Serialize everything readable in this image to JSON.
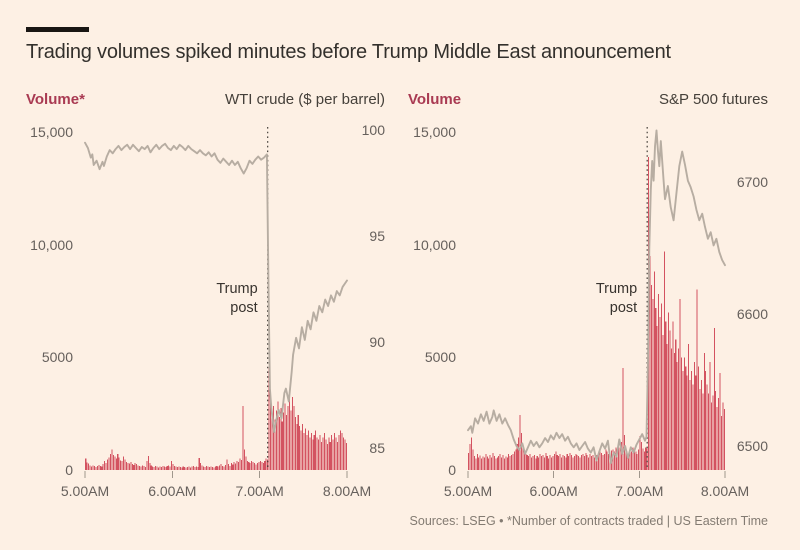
{
  "page": {
    "title": "Trading volumes spiked minutes before Trump Middle East announcement",
    "source_note": "Sources: LSEG • *Number of contracts traded | US Eastern Time"
  },
  "colors": {
    "background": "#fdf0e4",
    "bar_red": "#d35260",
    "volume_label_red": "#a93a52",
    "price_line_gray": "#b7ada2",
    "event_line": "#45403a",
    "axis_text": "#66605c",
    "title_text": "#33302c",
    "header_rule": "#191613"
  },
  "chart_data": [
    {
      "id": "wti-crude",
      "type": "bar+line",
      "volume_label": "Volume*",
      "price_label": "WTI crude ($ per barrel)",
      "x_ticks": [
        "5.00AM",
        "6.00AM",
        "7.00AM",
        "8.00AM"
      ],
      "x_range_minutes": 180,
      "event_minute": 125,
      "annotation": {
        "lines": [
          "Trump",
          "post"
        ]
      },
      "volume_axis": {
        "max": 15000,
        "tick_values": [
          15000,
          10000,
          5000,
          0
        ],
        "tick_labels": [
          "15,000",
          "10,000",
          "5000",
          "0"
        ]
      },
      "price_axis": {
        "tick_values": [
          100,
          95,
          90,
          85
        ],
        "tick_labels": [
          "100",
          "95",
          "90",
          "85"
        ]
      },
      "volume_minutes": [
        520,
        340,
        280,
        190,
        160,
        210,
        170,
        140,
        180,
        230,
        170,
        150,
        260,
        390,
        310,
        460,
        560,
        720,
        910,
        660,
        610,
        510,
        710,
        560,
        430,
        390,
        610,
        460,
        350,
        300,
        280,
        350,
        260,
        220,
        300,
        260,
        200,
        180,
        150,
        200,
        170,
        140,
        410,
        620,
        300,
        200,
        160,
        130,
        180,
        150,
        120,
        160,
        140,
        180,
        150,
        130,
        170,
        200,
        150,
        410,
        260,
        180,
        150,
        130,
        160,
        140,
        120,
        150,
        130,
        110,
        140,
        160,
        120,
        150,
        180,
        140,
        160,
        130,
        530,
        310,
        200,
        160,
        140,
        170,
        150,
        130,
        160,
        140,
        120,
        150,
        180,
        150,
        200,
        260,
        180,
        160,
        230,
        460,
        260,
        180,
        300,
        250,
        350,
        280,
        400,
        350,
        500,
        450,
        2830,
        920,
        610,
        410,
        350,
        300,
        400,
        350,
        300,
        250,
        300,
        350,
        410,
        350,
        300,
        410,
        510,
        460,
        4560,
        3250,
        2450,
        2850,
        2250,
        2650,
        3050,
        2350,
        2750,
        2150,
        2550,
        2950,
        2450,
        2850,
        3350,
        2650,
        3250,
        2850,
        2350,
        2050,
        2450,
        1950,
        1750,
        2050,
        1650,
        1850,
        1550,
        1750,
        1450,
        1650,
        1350,
        1550,
        1750,
        1450,
        1350,
        1550,
        1250,
        1450,
        1650,
        1350,
        1150,
        1450,
        1250,
        1550,
        1350,
        1650,
        1450,
        1250,
        1550,
        1750,
        1650,
        1450,
        1350,
        1200
      ],
      "price_points": [
        [
          0,
          99.4
        ],
        [
          2,
          99.15
        ],
        [
          4,
          98.7
        ],
        [
          5,
          98.85
        ],
        [
          6,
          98.35
        ],
        [
          8,
          98.55
        ],
        [
          10,
          98.15
        ],
        [
          12,
          98.5
        ],
        [
          13,
          98.3
        ],
        [
          15,
          98.75
        ],
        [
          17,
          99.05
        ],
        [
          19,
          98.9
        ],
        [
          21,
          99.1
        ],
        [
          23,
          99.25
        ],
        [
          25,
          99.05
        ],
        [
          27,
          99.2
        ],
        [
          29,
          99.3
        ],
        [
          31,
          99.1
        ],
        [
          33,
          99.3
        ],
        [
          35,
          99.15
        ],
        [
          37,
          99.0
        ],
        [
          39,
          99.2
        ],
        [
          41,
          99.1
        ],
        [
          43,
          99.25
        ],
        [
          45,
          98.95
        ],
        [
          47,
          99.15
        ],
        [
          49,
          99.3
        ],
        [
          51,
          99.1
        ],
        [
          53,
          99.25
        ],
        [
          55,
          99.35
        ],
        [
          57,
          99.15
        ],
        [
          59,
          99.05
        ],
        [
          61,
          99.25
        ],
        [
          63,
          99.1
        ],
        [
          65,
          99.3
        ],
        [
          67,
          99.2
        ],
        [
          69,
          99.05
        ],
        [
          71,
          99.25
        ],
        [
          73,
          99.1
        ],
        [
          75,
          99.0
        ],
        [
          77,
          98.9
        ],
        [
          79,
          99.05
        ],
        [
          81,
          98.9
        ],
        [
          83,
          98.8
        ],
        [
          85,
          98.95
        ],
        [
          87,
          98.75
        ],
        [
          89,
          98.9
        ],
        [
          91,
          98.6
        ],
        [
          93,
          98.45
        ],
        [
          95,
          98.65
        ],
        [
          97,
          98.5
        ],
        [
          99,
          98.35
        ],
        [
          101,
          98.55
        ],
        [
          103,
          98.35
        ],
        [
          105,
          98.5
        ],
        [
          107,
          98.2
        ],
        [
          109,
          97.95
        ],
        [
          111,
          98.2
        ],
        [
          113,
          98.55
        ],
        [
          115,
          98.4
        ],
        [
          117,
          98.6
        ],
        [
          119,
          98.75
        ],
        [
          121,
          98.6
        ],
        [
          123,
          98.7
        ],
        [
          125,
          98.85
        ],
        [
          126,
          93.0
        ],
        [
          127,
          87.8
        ],
        [
          128,
          86.9
        ],
        [
          129,
          86.3
        ],
        [
          130,
          85.75
        ],
        [
          131,
          86.2
        ],
        [
          133,
          86.8
        ],
        [
          135,
          86.4
        ],
        [
          137,
          87.6
        ],
        [
          138,
          87.8
        ],
        [
          140,
          87.2
        ],
        [
          142,
          88.6
        ],
        [
          143,
          89.4
        ],
        [
          145,
          90.2
        ],
        [
          147,
          89.7
        ],
        [
          149,
          90.7
        ],
        [
          151,
          90.1
        ],
        [
          153,
          91.0
        ],
        [
          155,
          90.6
        ],
        [
          157,
          91.4
        ],
        [
          159,
          91.0
        ],
        [
          161,
          91.7
        ],
        [
          163,
          91.4
        ],
        [
          165,
          92.0
        ],
        [
          167,
          91.7
        ],
        [
          169,
          92.2
        ],
        [
          171,
          91.9
        ],
        [
          173,
          92.4
        ],
        [
          175,
          92.2
        ],
        [
          177,
          92.6
        ],
        [
          180,
          92.9
        ]
      ]
    },
    {
      "id": "sp500-futures",
      "type": "bar+line",
      "volume_label": "Volume",
      "price_label": "S&P 500 futures",
      "x_ticks": [
        "5.00AM",
        "6.00AM",
        "7.00AM",
        "8.00AM"
      ],
      "x_range_minutes": 180,
      "event_minute": 125,
      "annotation": {
        "lines": [
          "Trump",
          "post"
        ]
      },
      "volume_axis": {
        "max": 15000,
        "tick_values": [
          15000,
          10000,
          5000,
          0
        ],
        "tick_labels": [
          "15,000",
          "10,000",
          "5000",
          "0"
        ]
      },
      "price_axis": {
        "tick_values": [
          6700,
          6600,
          6500
        ],
        "tick_labels": [
          "6700",
          "6600",
          "6500"
        ]
      },
      "volume_minutes": [
        750,
        1150,
        1450,
        900,
        620,
        520,
        700,
        560,
        640,
        500,
        600,
        560,
        700,
        600,
        520,
        660,
        560,
        760,
        620,
        520,
        560,
        620,
        700,
        560,
        660,
        520,
        600,
        560,
        700,
        620,
        660,
        720,
        820,
        920,
        1150,
        1450,
        2430,
        1650,
        1000,
        820,
        700,
        660,
        620,
        700,
        560,
        620,
        660,
        520,
        620,
        560,
        700,
        620,
        660,
        560,
        760,
        620,
        520,
        660,
        560,
        620,
        700,
        820,
        660,
        620,
        700,
        560,
        660,
        620,
        560,
        700,
        620,
        760,
        660,
        560,
        620,
        700,
        660,
        620,
        560,
        660,
        700,
        620,
        760,
        660,
        560,
        700,
        620,
        660,
        560,
        620,
        660,
        700,
        820,
        760,
        660,
        700,
        920,
        820,
        700,
        760,
        860,
        920,
        820,
        1000,
        920,
        1150,
        1000,
        1250,
        4520,
        1550,
        950,
        820,
        720,
        920,
        820,
        1000,
        920,
        820,
        720,
        920,
        1500,
        1250,
        950,
        820,
        1000,
        950,
        13900,
        9500,
        8200,
        7600,
        8800,
        7200,
        6400,
        7800,
        6800,
        7400,
        6000,
        9700,
        6600,
        5600,
        7000,
        6200,
        5400,
        6600,
        5200,
        5800,
        4800,
        5400,
        7600,
        5000,
        4400,
        5000,
        4600,
        4200,
        5600,
        4000,
        4400,
        3800,
        4800,
        4200,
        8000,
        4600,
        3600,
        4000,
        3400,
        5200,
        4400,
        3800,
        3400,
        4800,
        3000,
        3300,
        6300,
        3500,
        2800,
        3200,
        4300,
        2400,
        3000,
        2700
      ],
      "price_points": [
        [
          0,
          6512
        ],
        [
          2,
          6515
        ],
        [
          3,
          6510
        ],
        [
          5,
          6521
        ],
        [
          7,
          6517
        ],
        [
          9,
          6524
        ],
        [
          11,
          6519
        ],
        [
          13,
          6526
        ],
        [
          15,
          6517
        ],
        [
          17,
          6522
        ],
        [
          18,
          6527
        ],
        [
          20,
          6519
        ],
        [
          22,
          6524
        ],
        [
          24,
          6517
        ],
        [
          26,
          6521
        ],
        [
          28,
          6516
        ],
        [
          30,
          6512
        ],
        [
          32,
          6505
        ],
        [
          34,
          6500
        ],
        [
          36,
          6497
        ],
        [
          38,
          6502
        ],
        [
          40,
          6494
        ],
        [
          42,
          6499
        ],
        [
          44,
          6504
        ],
        [
          46,
          6500
        ],
        [
          48,
          6503
        ],
        [
          50,
          6499
        ],
        [
          52,
          6502
        ],
        [
          54,
          6506
        ],
        [
          56,
          6503
        ],
        [
          58,
          6508
        ],
        [
          60,
          6505
        ],
        [
          62,
          6510
        ],
        [
          64,
          6506
        ],
        [
          66,
          6509
        ],
        [
          68,
          6504
        ],
        [
          70,
          6507
        ],
        [
          72,
          6502
        ],
        [
          74,
          6499
        ],
        [
          76,
          6502
        ],
        [
          78,
          6497
        ],
        [
          80,
          6500
        ],
        [
          82,
          6503
        ],
        [
          84,
          6498
        ],
        [
          86,
          6495
        ],
        [
          88,
          6499
        ],
        [
          90,
          6489
        ],
        [
          92,
          6496
        ],
        [
          94,
          6502
        ],
        [
          96,
          6498
        ],
        [
          98,
          6504
        ],
        [
          100,
          6487
        ],
        [
          102,
          6495
        ],
        [
          104,
          6492
        ],
        [
          106,
          6505
        ],
        [
          108,
          6494
        ],
        [
          110,
          6500
        ],
        [
          112,
          6491
        ],
        [
          114,
          6499
        ],
        [
          116,
          6495
        ],
        [
          118,
          6501
        ],
        [
          120,
          6505
        ],
        [
          122,
          6509
        ],
        [
          124,
          6504
        ],
        [
          125,
          6507
        ],
        [
          126,
          6560
        ],
        [
          127,
          6650
        ],
        [
          128,
          6694
        ],
        [
          129,
          6716
        ],
        [
          130,
          6701
        ],
        [
          131,
          6727
        ],
        [
          132,
          6739
        ],
        [
          133,
          6724
        ],
        [
          134,
          6712
        ],
        [
          135,
          6731
        ],
        [
          136,
          6716
        ],
        [
          137,
          6701
        ],
        [
          138,
          6687
        ],
        [
          140,
          6697
        ],
        [
          142,
          6681
        ],
        [
          144,
          6671
        ],
        [
          146,
          6692
        ],
        [
          148,
          6712
        ],
        [
          150,
          6723
        ],
        [
          152,
          6713
        ],
        [
          154,
          6701
        ],
        [
          156,
          6696
        ],
        [
          158,
          6689
        ],
        [
          160,
          6679
        ],
        [
          162,
          6671
        ],
        [
          164,
          6676
        ],
        [
          166,
          6666
        ],
        [
          168,
          6657
        ],
        [
          170,
          6662
        ],
        [
          172,
          6652
        ],
        [
          174,
          6657
        ],
        [
          176,
          6647
        ],
        [
          178,
          6641
        ],
        [
          180,
          6637
        ]
      ]
    }
  ]
}
